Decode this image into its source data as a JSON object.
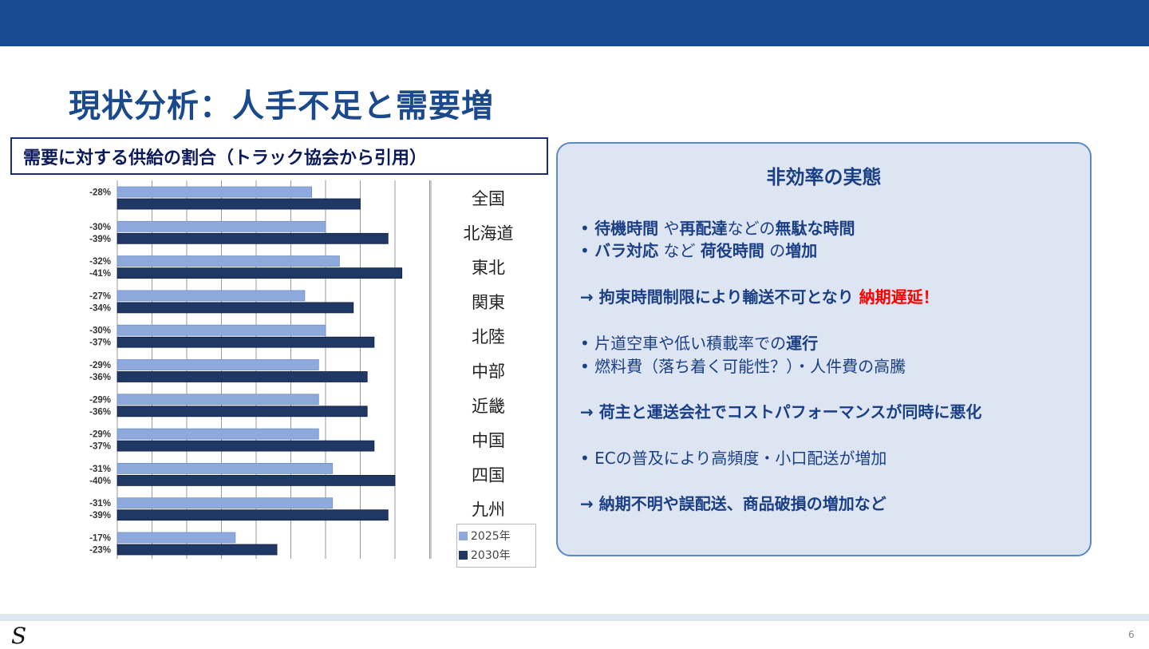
{
  "slide": {
    "title": "現状分析：人手不足と需要増",
    "page_number": "6",
    "logo_text": "S"
  },
  "chart_caption": "需要に対する供給の割合（トラック協会から引用）",
  "panel": {
    "title": "非効率の実態",
    "lines": [
      [
        {
          "t": "• ",
          "s": ""
        },
        {
          "t": "待機時間",
          "s": "b"
        },
        {
          "t": " や",
          "s": ""
        },
        {
          "t": "再配達",
          "s": "b"
        },
        {
          "t": "などの",
          "s": ""
        },
        {
          "t": "無駄な時間",
          "s": "b"
        }
      ],
      [
        {
          "t": "• ",
          "s": ""
        },
        {
          "t": "バラ対応",
          "s": "b"
        },
        {
          "t": " など ",
          "s": ""
        },
        {
          "t": "荷役時間",
          "s": "b"
        },
        {
          "t": " の",
          "s": ""
        },
        {
          "t": "増加",
          "s": "b"
        }
      ],
      [
        {
          "t": "→ 拘束時間制限により輸送不可となり  ",
          "s": "b"
        },
        {
          "t": "納期遅延！",
          "s": "red"
        }
      ],
      [
        {
          "t": "• 片道空車や低い積載率での",
          "s": ""
        },
        {
          "t": "運行",
          "s": "b"
        }
      ],
      [
        {
          "t": "• 燃料費（落ち着く可能性？）・人件費の高騰",
          "s": ""
        }
      ],
      [
        {
          "t": "→ 荷主と運送会社でコストパフォーマンスが同時に悪化",
          "s": "b"
        }
      ],
      [
        {
          "t": "• ECの普及により高頻度・小口配送が増加",
          "s": ""
        }
      ],
      [
        {
          "t": "→ 納期不明や誤配送、商品破損の増加など",
          "s": "b"
        }
      ]
    ]
  },
  "chart_data": {
    "type": "bar",
    "orientation": "horizontal",
    "categories": [
      "全国",
      "北海道",
      "東北",
      "関東",
      "北陸",
      "中部",
      "近畿",
      "中国",
      "四国",
      "九州",
      ""
    ],
    "series": [
      {
        "name": "2025年",
        "color": "#8eaadc",
        "values": [
          28,
          30,
          32,
          27,
          30,
          29,
          29,
          29,
          31,
          31,
          17
        ],
        "labels": [
          "-28%",
          "-30%",
          "-32%",
          "-27%",
          "-30%",
          "-29%",
          "-29%",
          "-29%",
          "-31%",
          "-31%",
          "-17%"
        ]
      },
      {
        "name": "2030年",
        "color": "#1f3864",
        "values": [
          35,
          39,
          41,
          34,
          37,
          36,
          36,
          37,
          40,
          39,
          23
        ],
        "labels": [
          "",
          "-39%",
          "-41%",
          "-34%",
          "-37%",
          "-36%",
          "-36%",
          "-37%",
          "-40%",
          "-39%",
          "-23%"
        ]
      }
    ],
    "xlim": [
      0,
      45
    ],
    "grid": true,
    "legend": "bottom-right"
  }
}
